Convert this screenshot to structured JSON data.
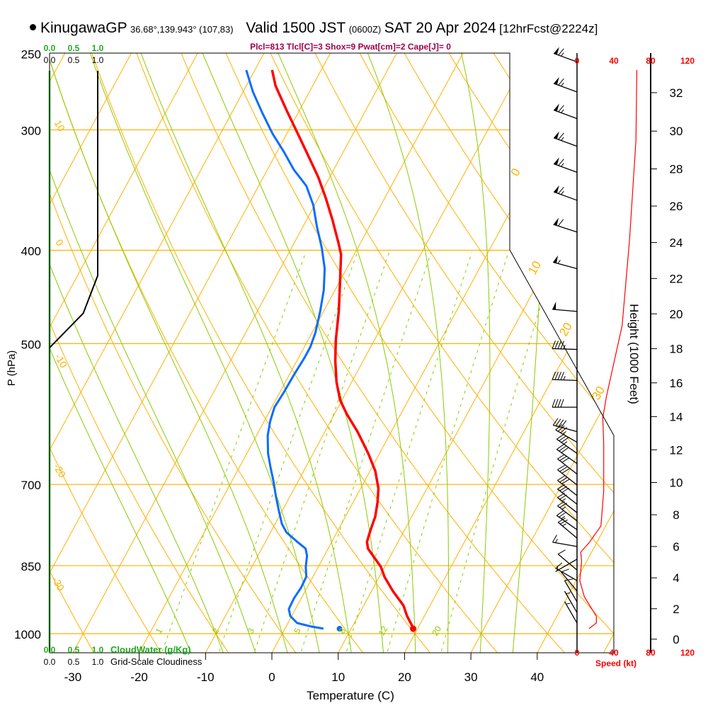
{
  "header": {
    "station": "KinugawaGP",
    "coords": "36.68°,139.943° (107,83)",
    "valid": "Valid 1500 JST",
    "utc": "(0600Z)",
    "date": "SAT 20 Apr 2024",
    "forecast": "[12hrFcst@2224z]",
    "indices": "Plcl=813 Tlcl[C]=3 Shox=9 Pwat[cm]=2 Cape[J]= 0"
  },
  "colors": {
    "temperature": "#ff0000",
    "dewpoint": "#0a6cff",
    "isotherm": "#ffb000",
    "moist": "#88cc00",
    "cloudwater": "#22aa22",
    "speed": "#ff0000",
    "indices": "#a0004a"
  },
  "chart_data": {
    "type": "skew-t",
    "title": "KinugawaGP Valid 1500 JST SAT 20 Apr 2024",
    "xlabel": "Temperature (C)",
    "ylabel": "P (hPa)",
    "y2label": "Height (1000 Feet)",
    "xlim": [
      -30,
      45
    ],
    "ylim": [
      1000,
      250
    ],
    "pressure_ticks": [
      "250",
      "300",
      "400",
      "500",
      "700",
      "850",
      "1000"
    ],
    "pressure_values": [
      250,
      300,
      400,
      500,
      700,
      850,
      1000
    ],
    "temperature_ticks": [
      "-30",
      "-20",
      "-10",
      "0",
      "10",
      "20",
      "30",
      "40"
    ],
    "temperature_values": [
      -30,
      -20,
      -10,
      0,
      10,
      20,
      30,
      40
    ],
    "height_ticks": [
      "0",
      "2",
      "4",
      "6",
      "8",
      "10",
      "12",
      "14",
      "16",
      "18",
      "20",
      "22",
      "24",
      "26",
      "28",
      "30",
      "32"
    ],
    "height_values": [
      0,
      2,
      4,
      6,
      8,
      10,
      12,
      14,
      16,
      18,
      20,
      22,
      24,
      26,
      28,
      30,
      32
    ],
    "dry_adiabat_labels": [
      "10",
      "0",
      "-10",
      "-20",
      "-30"
    ],
    "isotherm_labels": [
      "0",
      "10",
      "20",
      "30"
    ],
    "mixing_ratio_labels": [
      "1",
      "2",
      "3",
      "5",
      "8",
      "12",
      "20"
    ],
    "mixing_ratios": [
      1,
      2,
      3,
      5,
      8,
      12,
      20
    ],
    "moist_adiabats_T1000": [
      -15,
      -10,
      -5,
      0,
      5,
      10,
      15,
      20,
      25,
      30,
      35
    ],
    "temperature_profile": [
      [
        988,
        19.4
      ],
      [
        959,
        17.4
      ],
      [
        935,
        16.0
      ],
      [
        903,
        13.2
      ],
      [
        873,
        10.8
      ],
      [
        852,
        9.4
      ],
      [
        837,
        8.0
      ],
      [
        816,
        6.0
      ],
      [
        803,
        5.3
      ],
      [
        782,
        4.9
      ],
      [
        756,
        4.5
      ],
      [
        731,
        3.7
      ],
      [
        707,
        2.7
      ],
      [
        678,
        0.8
      ],
      [
        650,
        -1.7
      ],
      [
        617,
        -5.1
      ],
      [
        592,
        -8.1
      ],
      [
        572,
        -10.3
      ],
      [
        548,
        -12.3
      ],
      [
        521,
        -14.2
      ],
      [
        496,
        -15.8
      ],
      [
        463,
        -17.7
      ],
      [
        433,
        -19.8
      ],
      [
        404,
        -22.0
      ],
      [
        394,
        -23.2
      ],
      [
        372,
        -26.1
      ],
      [
        353,
        -28.9
      ],
      [
        336,
        -31.7
      ],
      [
        319,
        -35.0
      ],
      [
        303,
        -38.3
      ],
      [
        286,
        -42.0
      ],
      [
        270,
        -45.6
      ],
      [
        260,
        -47.4
      ]
    ],
    "dewpoint_profile": [
      [
        988,
        5.8
      ],
      [
        983,
        3.8
      ],
      [
        975,
        1.4
      ],
      [
        959,
        -0.2
      ],
      [
        943,
        -1.0
      ],
      [
        919,
        -1.1
      ],
      [
        896,
        -0.9
      ],
      [
        873,
        -1.0
      ],
      [
        852,
        -1.9
      ],
      [
        830,
        -2.6
      ],
      [
        816,
        -3.4
      ],
      [
        803,
        -5.2
      ],
      [
        785,
        -7.6
      ],
      [
        769,
        -9.0
      ],
      [
        744,
        -10.6
      ],
      [
        719,
        -12.2
      ],
      [
        695,
        -13.7
      ],
      [
        672,
        -15.3
      ],
      [
        650,
        -16.8
      ],
      [
        623,
        -18.3
      ],
      [
        602,
        -19.1
      ],
      [
        582,
        -19.6
      ],
      [
        563,
        -19.4
      ],
      [
        539,
        -19.3
      ],
      [
        517,
        -19.1
      ],
      [
        504,
        -19.1
      ],
      [
        487,
        -19.5
      ],
      [
        463,
        -20.5
      ],
      [
        440,
        -21.7
      ],
      [
        418,
        -23.3
      ],
      [
        398,
        -25.4
      ],
      [
        378,
        -27.9
      ],
      [
        359,
        -30.2
      ],
      [
        343,
        -32.8
      ],
      [
        330,
        -36.0
      ],
      [
        316,
        -39.0
      ],
      [
        303,
        -42.1
      ],
      [
        288,
        -45.4
      ],
      [
        274,
        -48.5
      ],
      [
        260,
        -51.3
      ]
    ],
    "surface": {
      "pressure": 990,
      "temperature": 19.4,
      "dewpoint": 8.3
    },
    "wind_barbs": [
      [
        255,
        290,
        65
      ],
      [
        274,
        290,
        65
      ],
      [
        292,
        290,
        65
      ],
      [
        312,
        290,
        65
      ],
      [
        332,
        290,
        65
      ],
      [
        355,
        290,
        65
      ],
      [
        383,
        288,
        60
      ],
      [
        418,
        285,
        55
      ],
      [
        463,
        275,
        50
      ],
      [
        507,
        272,
        45
      ],
      [
        546,
        272,
        45
      ],
      [
        582,
        270,
        40
      ],
      [
        617,
        285,
        40
      ],
      [
        633,
        300,
        35
      ],
      [
        650,
        305,
        35
      ],
      [
        666,
        305,
        30
      ],
      [
        683,
        308,
        30
      ],
      [
        701,
        308,
        30
      ],
      [
        719,
        308,
        30
      ],
      [
        734,
        308,
        30
      ],
      [
        749,
        308,
        25
      ],
      [
        764,
        308,
        25
      ],
      [
        780,
        305,
        25
      ],
      [
        796,
        310,
        25
      ],
      [
        812,
        280,
        15
      ],
      [
        837,
        240,
        5
      ],
      [
        859,
        310,
        10
      ],
      [
        881,
        300,
        10
      ],
      [
        903,
        320,
        10
      ],
      [
        927,
        330,
        10
      ],
      [
        951,
        330,
        5
      ],
      [
        975,
        330,
        5
      ]
    ],
    "wind_speed_profile": [
      [
        260,
        65
      ],
      [
        308,
        64
      ],
      [
        391,
        57
      ],
      [
        479,
        49
      ],
      [
        567,
        32
      ],
      [
        597,
        28
      ],
      [
        635,
        29
      ],
      [
        711,
        29
      ],
      [
        773,
        26
      ],
      [
        805,
        13
      ],
      [
        823,
        4
      ],
      [
        841,
        5
      ],
      [
        881,
        3
      ],
      [
        916,
        8
      ],
      [
        959,
        21
      ],
      [
        975,
        21
      ],
      [
        988,
        13
      ]
    ],
    "speed_axis": {
      "label": "Speed (kt)",
      "ticks": [
        "0",
        "40",
        "80",
        "120"
      ],
      "values": [
        0,
        40,
        80,
        120
      ]
    },
    "cloudiness": {
      "label": "Grid-Scale Cloudiness",
      "ticks": [
        "0.0",
        "0.5",
        "1.0"
      ],
      "profile": [
        [
          260,
          1.0
        ],
        [
          425,
          1.0
        ],
        [
          465,
          0.7
        ],
        [
          505,
          0.0
        ]
      ]
    },
    "cloudwater": {
      "label": "CloudWater (g/Kg)",
      "ticks": [
        "0.0",
        "0.5",
        "1.0"
      ],
      "profile": [
        [
          260,
          0
        ],
        [
          1050,
          0
        ]
      ]
    }
  }
}
